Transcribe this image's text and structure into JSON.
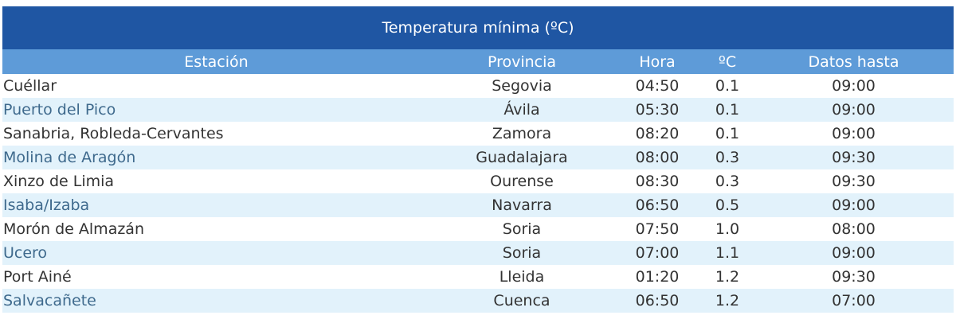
{
  "table": {
    "title": "Temperatura mínima (ºC)",
    "headers": [
      "Estación",
      "Provincia",
      "Hora",
      "ºC",
      "Datos hasta"
    ],
    "rows": [
      [
        "Cuéllar",
        "Segovia",
        "04:50",
        "0.1",
        "09:00"
      ],
      [
        "Puerto del Pico",
        "Ávila",
        "05:30",
        "0.1",
        "09:00"
      ],
      [
        "Sanabria, Robleda-Cervantes",
        "Zamora",
        "08:20",
        "0.1",
        "09:00"
      ],
      [
        "Molina de Aragón",
        "Guadalajara",
        "08:00",
        "0.3",
        "09:30"
      ],
      [
        "Xinzo de Limia",
        "Ourense",
        "08:30",
        "0.3",
        "09:30"
      ],
      [
        "Isaba/Izaba",
        "Navarra",
        "06:50",
        "0.5",
        "09:00"
      ],
      [
        "Morón de Almazán",
        "Soria",
        "07:50",
        "1.0",
        "08:00"
      ],
      [
        "Ucero",
        "Soria",
        "07:00",
        "1.1",
        "09:00"
      ],
      [
        "Port Ainé",
        "Lleida",
        "01:20",
        "1.2",
        "09:30"
      ],
      [
        "Salvacañete",
        "Cuenca",
        "06:50",
        "1.2",
        "07:00"
      ]
    ]
  },
  "colors": {
    "title_bg": "#1f56a3",
    "header_bg": "#5e9bd8",
    "stripe_bg": "#e2f2fb"
  }
}
